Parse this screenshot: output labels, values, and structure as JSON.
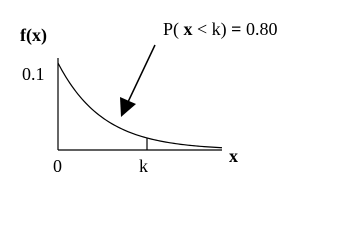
{
  "y_axis_label": "f(x)",
  "y_axis_value": "0.1",
  "annotation": {
    "prefix": "P(",
    "variable": "x",
    "relation": "< k)",
    "equals": "=",
    "value": "0.80"
  },
  "x_axis_origin": "0",
  "x_axis_marker": "k",
  "x_axis_label": "x"
}
